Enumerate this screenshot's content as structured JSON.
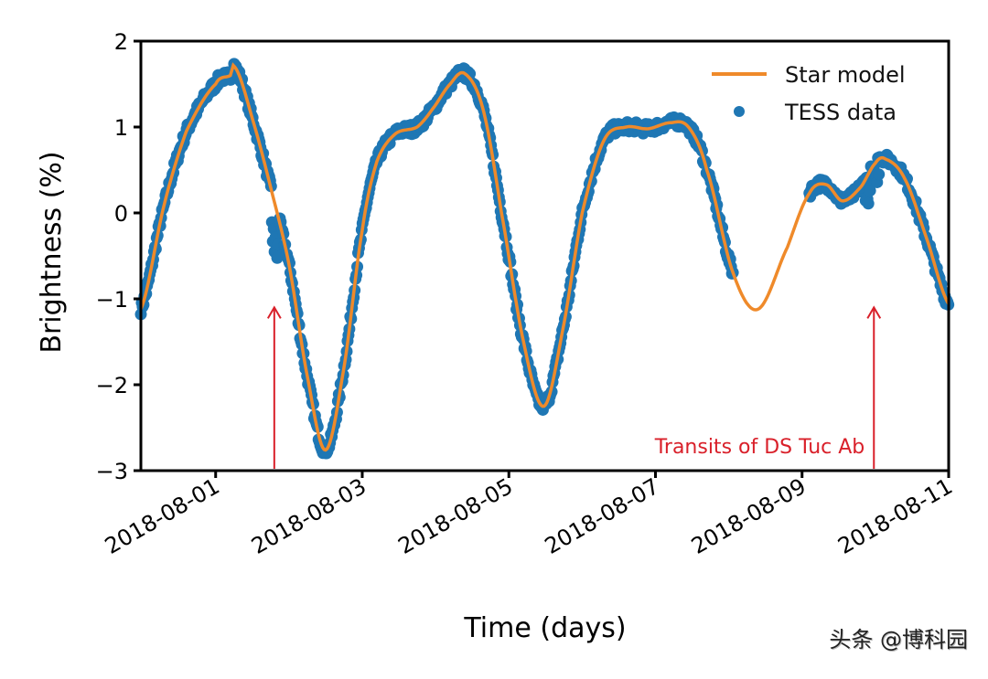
{
  "chart_data": {
    "type": "line",
    "title": "",
    "xlabel": "Time (days)",
    "ylabel": "Brightness (%)",
    "x_unit": "days since 2018-08-01 00:00",
    "xlim": [
      -1.02,
      10.0
    ],
    "ylim": [
      -3,
      2
    ],
    "xticks": [
      {
        "value": 0,
        "label": "2018-08-01"
      },
      {
        "value": 2,
        "label": "2018-08-03"
      },
      {
        "value": 4,
        "label": "2018-08-05"
      },
      {
        "value": 6,
        "label": "2018-08-07"
      },
      {
        "value": 8,
        "label": "2018-08-09"
      },
      {
        "value": 10,
        "label": "2018-08-11"
      }
    ],
    "yticks": [
      {
        "value": 2,
        "label": "2"
      },
      {
        "value": 1,
        "label": "1"
      },
      {
        "value": 0,
        "label": "0"
      },
      {
        "value": -1,
        "label": "−1"
      },
      {
        "value": -2,
        "label": "−2"
      },
      {
        "value": -3,
        "label": "−3"
      }
    ],
    "grid": false,
    "legend": {
      "position": "top-right",
      "entries": [
        "Star model",
        "TESS data"
      ]
    },
    "series": [
      {
        "name": "Star model",
        "kind": "line",
        "color": "#ef8a2a",
        "x": [
          -1.02,
          -0.7,
          -0.4,
          0.0,
          0.2,
          0.26,
          0.5,
          0.75,
          1.0,
          1.25,
          1.5,
          1.75,
          2.0,
          2.2,
          2.45,
          2.75,
          2.95,
          3.2,
          3.4,
          3.65,
          3.9,
          4.2,
          4.48,
          4.75,
          5.0,
          5.3,
          5.6,
          5.9,
          6.2,
          6.45,
          6.7,
          7.06,
          7.4,
          7.8,
          8.1,
          8.33,
          8.55,
          8.8,
          9.0,
          9.13,
          9.4,
          9.7,
          10.0
        ],
        "y": [
          -1.12,
          0.1,
          0.95,
          1.5,
          1.6,
          1.7,
          1.1,
          0.3,
          -0.6,
          -1.9,
          -2.76,
          -1.8,
          -0.2,
          0.6,
          0.92,
          1.0,
          1.2,
          1.5,
          1.62,
          1.2,
          0.0,
          -1.5,
          -2.25,
          -1.3,
          0.0,
          0.85,
          1.0,
          0.98,
          1.05,
          1.0,
          0.5,
          -0.7,
          -1.12,
          -0.4,
          0.23,
          0.33,
          0.14,
          0.3,
          0.58,
          0.63,
          0.4,
          -0.3,
          -1.06
        ]
      },
      {
        "name": "TESS data",
        "kind": "scatter",
        "color": "#1f77b4",
        "coverage_ranges": [
          [
            -1.02,
            7.06
          ],
          [
            8.1,
            10.0
          ]
        ],
        "note": "dense points following the model, with a small excursion near day 0.8 and near day 9.0"
      }
    ],
    "annotations": [
      {
        "text": "Transits of DS Tuc Ab",
        "color": "#d9202a",
        "arrows_at_x": [
          0.8,
          8.98
        ],
        "arrow_tip_y": -1.1,
        "arrow_base_y": -3.0
      }
    ]
  },
  "watermark": "头条 @博科园"
}
